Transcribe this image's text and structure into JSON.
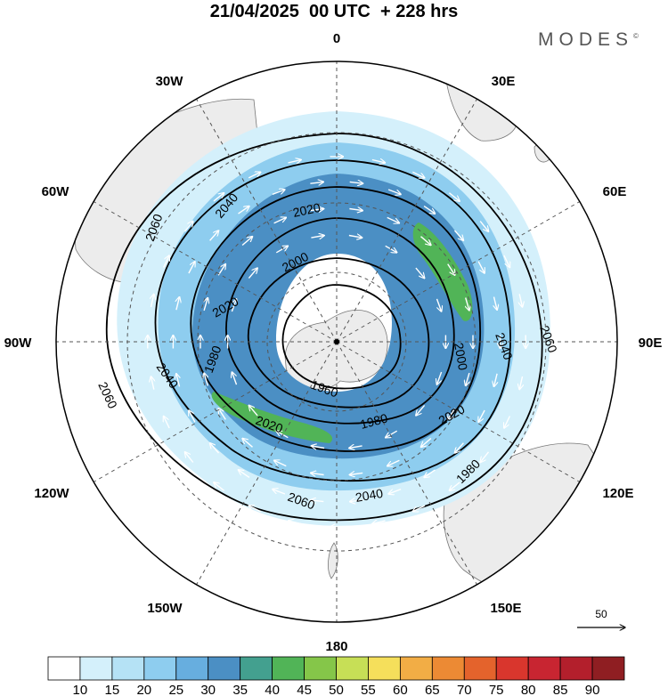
{
  "header": {
    "title": "21/04/2025  00 UTC  + 228 hrs",
    "brand": "MODES",
    "brand_mark": "©"
  },
  "map": {
    "projection": "polar stereographic (south pole centred)",
    "longitude_labels": [
      "0",
      "30E",
      "60E",
      "90E",
      "120E",
      "150E",
      "180",
      "150W",
      "120W",
      "90W",
      "60W",
      "30W"
    ],
    "contour_labels": [
      {
        "text": "2060"
      },
      {
        "text": "2040"
      },
      {
        "text": "2020"
      },
      {
        "text": "2000"
      },
      {
        "text": "2060"
      },
      {
        "text": "2040"
      },
      {
        "text": "2000"
      },
      {
        "text": "2020"
      },
      {
        "text": "1980"
      },
      {
        "text": "1960"
      },
      {
        "text": "2020"
      },
      {
        "text": "2040"
      },
      {
        "text": "2060"
      },
      {
        "text": "2060"
      },
      {
        "text": "2040"
      },
      {
        "text": "1980"
      },
      {
        "text": "2020"
      },
      {
        "text": "1980"
      }
    ],
    "contour_levels": [
      1960,
      1980,
      2000,
      2020,
      2040,
      2060
    ],
    "vector_reference": "50",
    "colors": {
      "land": "#ececec",
      "coast": "#777777",
      "grid": "#555555",
      "contour": "#000000",
      "arrow": "#ffffff"
    }
  },
  "colorbar": {
    "ticks": [
      "10",
      "15",
      "20",
      "25",
      "30",
      "35",
      "40",
      "45",
      "50",
      "55",
      "60",
      "65",
      "70",
      "75",
      "80",
      "85",
      "90"
    ],
    "colors": [
      "#ffffff",
      "#d4f0fb",
      "#b5e2f5",
      "#8ecdef",
      "#67aedf",
      "#4b8fc4",
      "#43a08f",
      "#51b457",
      "#85c649",
      "#c7df56",
      "#f5df5b",
      "#f2ad45",
      "#ec8a34",
      "#e4632c",
      "#d9362d",
      "#c82531",
      "#b31f2c",
      "#8f1e22"
    ]
  }
}
